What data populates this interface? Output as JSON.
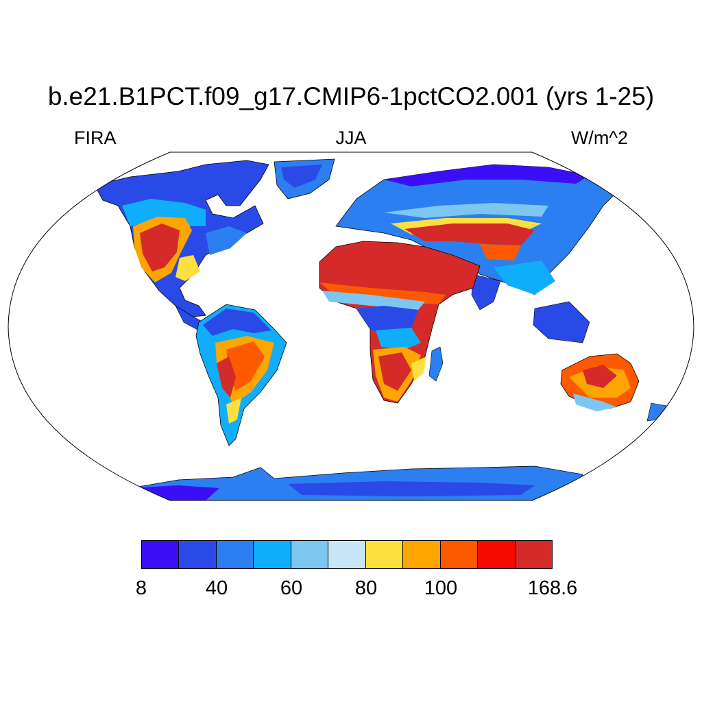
{
  "title": "b.e21.B1PCT.f09_g17.CMIP6-1pctCO2.001 (yrs 1-25)",
  "left_label": "FIRA",
  "center_label": "JJA",
  "right_label": "W/m^2",
  "map": {
    "projection": "Robinson",
    "field": "FIRA",
    "season": "JJA",
    "ocean_color": "#ffffff",
    "land_outline_color": "#000000"
  },
  "colorbar": {
    "colors": [
      "#3b0ff5",
      "#2a4ae8",
      "#2b7ff0",
      "#10aefa",
      "#7cc6f0",
      "#c8e6f8",
      "#fde040",
      "#fda500",
      "#fd5a00",
      "#f50a00",
      "#d42a2a"
    ],
    "labels": [
      "8",
      "40",
      "60",
      "80",
      "100",
      "168.6"
    ]
  }
}
